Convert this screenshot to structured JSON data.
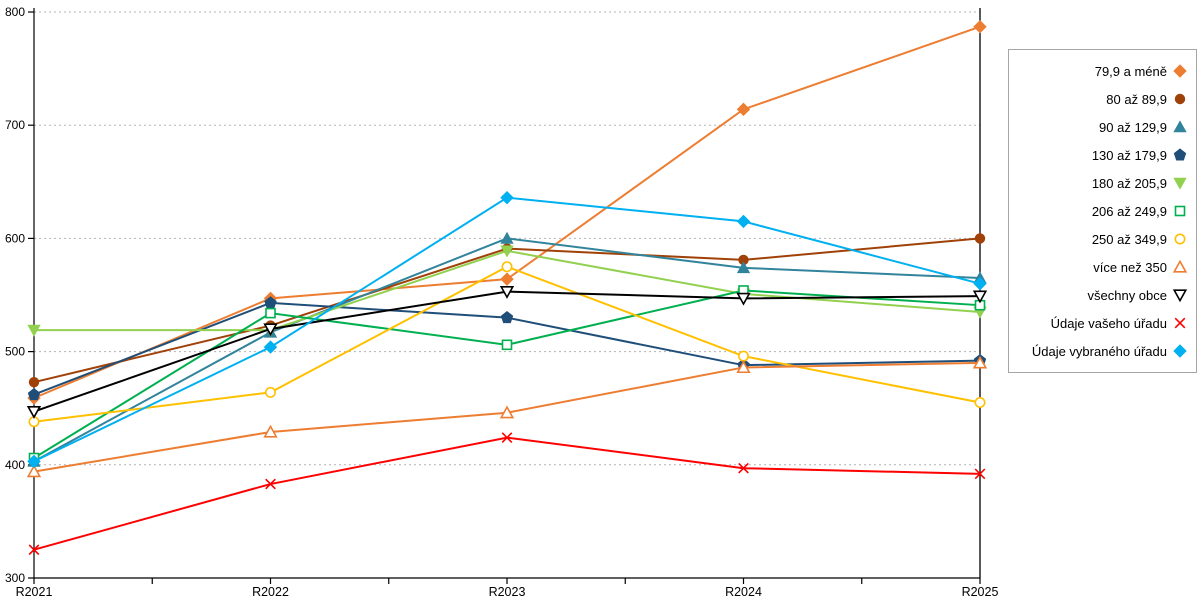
{
  "chart_data": {
    "type": "line",
    "title": "",
    "xlabel": "",
    "ylabel": "",
    "categories": [
      "R2021",
      "R2022",
      "R2023",
      "R2024",
      "R2025"
    ],
    "ylim": [
      300,
      800
    ],
    "yticks": [
      300,
      400,
      500,
      600,
      700,
      800
    ],
    "grid": "horizontal-dashed",
    "legend_position": "right",
    "highlight_category": "R2025",
    "series": [
      {
        "name": "79,9 a méně",
        "color": "#ED7D31",
        "marker": "diamond",
        "marker_fill": "filled",
        "values": [
          459,
          547,
          564,
          714,
          787
        ]
      },
      {
        "name": "80 až 89,9",
        "color": "#A04108",
        "marker": "circle",
        "marker_fill": "filled",
        "values": [
          473,
          523,
          591,
          581,
          600
        ]
      },
      {
        "name": "90 až 129,9",
        "color": "#31849B",
        "marker": "triangle-up",
        "marker_fill": "filled",
        "values": [
          403,
          517,
          600,
          574,
          565
        ]
      },
      {
        "name": "130 až 179,9",
        "color": "#1F4E79",
        "marker": "pentagon",
        "marker_fill": "filled",
        "values": [
          462,
          543,
          530,
          488,
          492
        ]
      },
      {
        "name": "180 až 205,9",
        "color": "#92D050",
        "marker": "triangle-down",
        "marker_fill": "filled",
        "values": [
          519,
          519,
          589,
          551,
          535
        ]
      },
      {
        "name": "206 až 249,9",
        "color": "#00B050",
        "marker": "square",
        "marker_fill": "hollow",
        "values": [
          406,
          534,
          506,
          554,
          541
        ]
      },
      {
        "name": "250 až 349,9",
        "color": "#FFC000",
        "marker": "circle",
        "marker_fill": "hollow",
        "values": [
          438,
          464,
          575,
          496,
          455
        ]
      },
      {
        "name": "více než 350",
        "color": "#ED7D31",
        "marker": "triangle-up",
        "marker_fill": "hollow",
        "values": [
          394,
          429,
          446,
          486,
          490
        ]
      },
      {
        "name": "všechny obce",
        "color": "#000000",
        "marker": "triangle-down",
        "marker_fill": "hollow",
        "values": [
          447,
          520,
          553,
          547,
          549
        ]
      },
      {
        "name": "Údaje vašeho úřadu",
        "color": "#FF0000",
        "marker": "x",
        "marker_fill": "hollow",
        "values": [
          325,
          383,
          424,
          397,
          392
        ]
      },
      {
        "name": "Údaje vybraného úřadu",
        "color": "#00B0F0",
        "marker": "diamond",
        "marker_fill": "filled",
        "values": [
          403,
          504,
          636,
          615,
          560
        ]
      }
    ]
  }
}
